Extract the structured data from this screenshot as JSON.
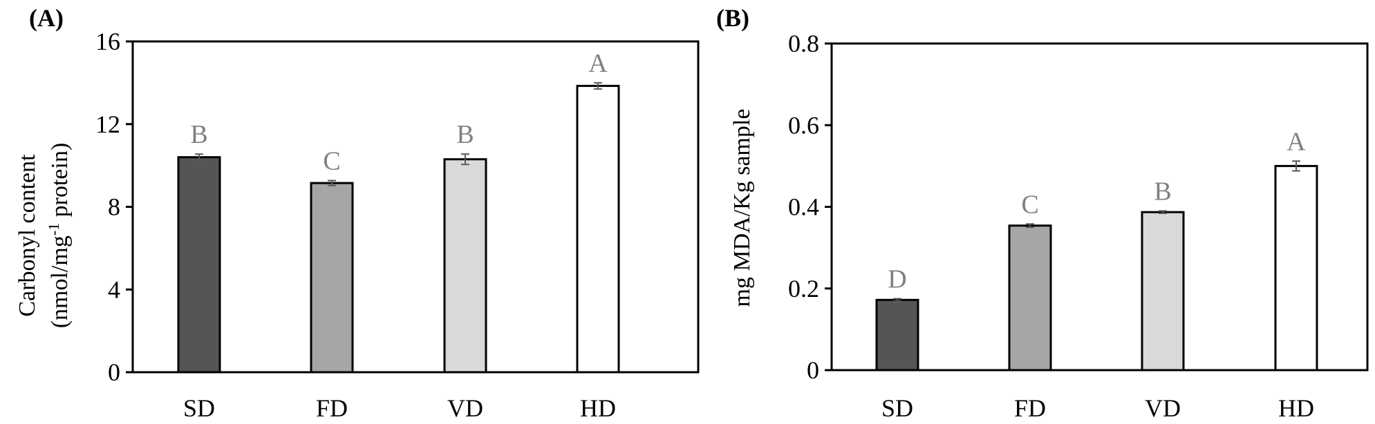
{
  "chart_data": [
    {
      "panel": "(A)",
      "type": "bar",
      "ylabel_line1": "Carbonyl content",
      "ylabel_line2_pre": "(nmol/mg",
      "ylabel_line2_sup": "-1",
      "ylabel_line2_post": " protein)",
      "ylim": [
        0,
        16
      ],
      "yticks": [
        0,
        4,
        8,
        12,
        16
      ],
      "ytick_labels": [
        "0",
        "4",
        "8",
        "12",
        "16"
      ],
      "categories": [
        "SD",
        "FD",
        "VD",
        "HD"
      ],
      "values": [
        10.4,
        9.15,
        10.3,
        13.85
      ],
      "errors": [
        0.15,
        0.12,
        0.25,
        0.15
      ],
      "letters": [
        "B",
        "C",
        "B",
        "A"
      ],
      "colors": [
        "#555555",
        "#a6a6a6",
        "#d9d9d9",
        "#ffffff"
      ],
      "grid": false,
      "legend": "none"
    },
    {
      "panel": "(B)",
      "type": "bar",
      "ylabel": "mg MDA/Kg sample",
      "ylim": [
        0,
        0.8
      ],
      "yticks": [
        0,
        0.2,
        0.4,
        0.6,
        0.8
      ],
      "ytick_labels": [
        "0",
        "0.2",
        "0.4",
        "0.6",
        "0.8"
      ],
      "categories": [
        "SD",
        "FD",
        "VD",
        "HD"
      ],
      "values": [
        0.172,
        0.354,
        0.387,
        0.5
      ],
      "errors": [
        0.003,
        0.004,
        0.003,
        0.012
      ],
      "letters": [
        "D",
        "C",
        "B",
        "A"
      ],
      "colors": [
        "#555555",
        "#a6a6a6",
        "#d9d9d9",
        "#ffffff"
      ],
      "grid": false,
      "legend": "none"
    }
  ],
  "colors": {
    "axis": "#000000",
    "letter": "#808080",
    "error_bar": "#595959"
  }
}
